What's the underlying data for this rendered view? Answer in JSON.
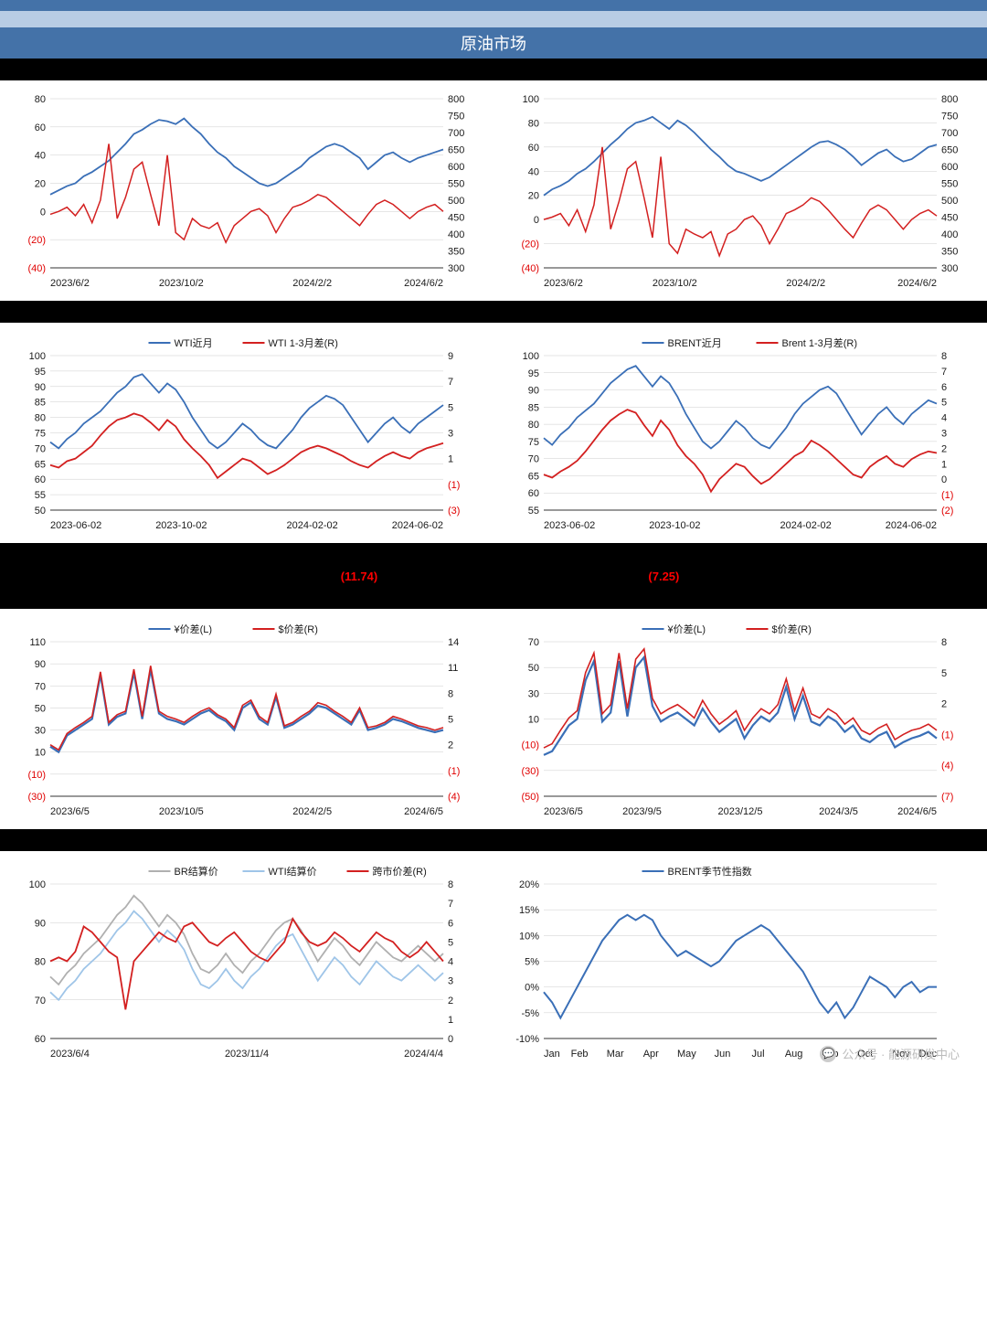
{
  "title": "原油市场",
  "header_color": "#4472a8",
  "subheader_color": "#b8cce4",
  "blackbar_color": "#000000",
  "negtext1": "(11.74)",
  "negtext2": "(7.25)",
  "watermark_text": "公众号 · 能源研发中心",
  "colors": {
    "blue_line": "#3a6fb7",
    "red_line": "#d32020",
    "light_blue": "#9fc5e8",
    "gray_line": "#b0b0b0",
    "grid": "#cccccc",
    "axis": "#333333"
  },
  "c1": {
    "left_ticks": [
      -40,
      -20,
      0,
      20,
      40,
      60,
      80
    ],
    "right_ticks": [
      300,
      350,
      400,
      450,
      500,
      550,
      600,
      650,
      700,
      750,
      800
    ],
    "x_labels": [
      "2023/6/2",
      "2023/10/2",
      "2024/2/2",
      "2024/6/2"
    ],
    "ylim_left": [
      -40,
      80
    ],
    "ylim_right": [
      300,
      800
    ],
    "blue": [
      12,
      15,
      18,
      20,
      25,
      28,
      32,
      36,
      42,
      48,
      55,
      58,
      62,
      65,
      64,
      62,
      66,
      60,
      55,
      48,
      42,
      38,
      32,
      28,
      24,
      20,
      18,
      20,
      24,
      28,
      32,
      38,
      42,
      46,
      48,
      46,
      42,
      38,
      30,
      35,
      40,
      42,
      38,
      35,
      38,
      40,
      42,
      44
    ],
    "red": [
      -2,
      0,
      3,
      -3,
      5,
      -8,
      8,
      48,
      -5,
      10,
      30,
      35,
      12,
      -10,
      40,
      -15,
      -20,
      -5,
      -10,
      -12,
      -8,
      -22,
      -10,
      -5,
      0,
      2,
      -3,
      -15,
      -5,
      3,
      5,
      8,
      12,
      10,
      5,
      0,
      -5,
      -10,
      -2,
      5,
      8,
      5,
      0,
      -5,
      0,
      3,
      5,
      0
    ]
  },
  "c2": {
    "left_ticks": [
      -40,
      -20,
      0,
      20,
      40,
      60,
      80,
      100
    ],
    "right_ticks": [
      300,
      350,
      400,
      450,
      500,
      550,
      600,
      650,
      700,
      750,
      800
    ],
    "x_labels": [
      "2023/6/2",
      "2023/10/2",
      "2024/2/2",
      "2024/6/2"
    ],
    "ylim_left": [
      -40,
      100
    ],
    "ylim_right": [
      300,
      800
    ],
    "blue": [
      20,
      25,
      28,
      32,
      38,
      42,
      48,
      55,
      62,
      68,
      75,
      80,
      82,
      85,
      80,
      75,
      82,
      78,
      72,
      65,
      58,
      52,
      45,
      40,
      38,
      35,
      32,
      35,
      40,
      45,
      50,
      55,
      60,
      64,
      65,
      62,
      58,
      52,
      45,
      50,
      55,
      58,
      52,
      48,
      50,
      55,
      60,
      62
    ],
    "red": [
      0,
      2,
      5,
      -5,
      8,
      -10,
      12,
      60,
      -8,
      15,
      42,
      48,
      18,
      -15,
      52,
      -20,
      -28,
      -8,
      -12,
      -15,
      -10,
      -30,
      -12,
      -8,
      0,
      3,
      -5,
      -20,
      -8,
      5,
      8,
      12,
      18,
      15,
      8,
      0,
      -8,
      -15,
      -3,
      8,
      12,
      8,
      0,
      -8,
      0,
      5,
      8,
      3
    ]
  },
  "c3": {
    "legend": [
      "WTI近月",
      "WTI 1-3月差(R)"
    ],
    "left_ticks": [
      50,
      55,
      60,
      65,
      70,
      75,
      80,
      85,
      90,
      95,
      100
    ],
    "right_ticks": [
      -3,
      -1,
      1,
      3,
      5,
      7,
      9
    ],
    "x_labels": [
      "2023-06-02",
      "2023-10-02",
      "2024-02-02",
      "2024-06-02"
    ],
    "ylim_left": [
      50,
      100
    ],
    "ylim_right": [
      -3,
      9
    ],
    "blue": [
      72,
      70,
      73,
      75,
      78,
      80,
      82,
      85,
      88,
      90,
      93,
      94,
      91,
      88,
      91,
      89,
      85,
      80,
      76,
      72,
      70,
      72,
      75,
      78,
      76,
      73,
      71,
      70,
      73,
      76,
      80,
      83,
      85,
      87,
      86,
      84,
      80,
      76,
      72,
      75,
      78,
      80,
      77,
      75,
      78,
      80,
      82,
      84
    ],
    "red": [
      0.5,
      0.3,
      0.8,
      1.0,
      1.5,
      2.0,
      2.8,
      3.5,
      4.0,
      4.2,
      4.5,
      4.3,
      3.8,
      3.2,
      4.0,
      3.5,
      2.5,
      1.8,
      1.2,
      0.5,
      -0.5,
      0.0,
      0.5,
      1.0,
      0.8,
      0.3,
      -0.2,
      0.1,
      0.5,
      1.0,
      1.5,
      1.8,
      2.0,
      1.8,
      1.5,
      1.2,
      0.8,
      0.5,
      0.3,
      0.8,
      1.2,
      1.5,
      1.2,
      1.0,
      1.5,
      1.8,
      2.0,
      2.2
    ]
  },
  "c4": {
    "legend": [
      "BRENT近月",
      "Brent 1-3月差(R)"
    ],
    "left_ticks": [
      55,
      60,
      65,
      70,
      75,
      80,
      85,
      90,
      95,
      100
    ],
    "right_ticks": [
      -2,
      -1,
      0,
      1,
      2,
      3,
      4,
      5,
      6,
      7,
      8
    ],
    "x_labels": [
      "2023-06-02",
      "2023-10-02",
      "2024-02-02",
      "2024-06-02"
    ],
    "ylim_left": [
      55,
      100
    ],
    "ylim_right": [
      -2,
      8
    ],
    "blue": [
      76,
      74,
      77,
      79,
      82,
      84,
      86,
      89,
      92,
      94,
      96,
      97,
      94,
      91,
      94,
      92,
      88,
      83,
      79,
      75,
      73,
      75,
      78,
      81,
      79,
      76,
      74,
      73,
      76,
      79,
      83,
      86,
      88,
      90,
      91,
      89,
      85,
      81,
      77,
      80,
      83,
      85,
      82,
      80,
      83,
      85,
      87,
      86
    ],
    "red": [
      0.3,
      0.1,
      0.5,
      0.8,
      1.2,
      1.8,
      2.5,
      3.2,
      3.8,
      4.2,
      4.5,
      4.3,
      3.5,
      2.8,
      3.8,
      3.2,
      2.2,
      1.5,
      1.0,
      0.3,
      -0.8,
      0.0,
      0.5,
      1.0,
      0.8,
      0.2,
      -0.3,
      0.0,
      0.5,
      1.0,
      1.5,
      1.8,
      2.5,
      2.2,
      1.8,
      1.3,
      0.8,
      0.3,
      0.1,
      0.8,
      1.2,
      1.5,
      1.0,
      0.8,
      1.3,
      1.6,
      1.8,
      1.7
    ]
  },
  "c5": {
    "legend": [
      "¥价差(L)",
      "$价差(R)"
    ],
    "left_ticks": [
      -30,
      -10,
      10,
      30,
      50,
      70,
      90,
      110
    ],
    "right_ticks": [
      -4,
      -1,
      2,
      5,
      8,
      11,
      14
    ],
    "x_labels": [
      "2023/6/5",
      "2023/10/5",
      "2024/2/5",
      "2024/6/5"
    ],
    "ylim_left": [
      -30,
      110
    ],
    "ylim_right": [
      -4,
      14
    ],
    "blue": [
      15,
      10,
      25,
      30,
      35,
      40,
      80,
      35,
      42,
      45,
      82,
      40,
      85,
      45,
      40,
      38,
      35,
      40,
      45,
      48,
      42,
      38,
      30,
      50,
      55,
      40,
      35,
      60,
      32,
      35,
      40,
      45,
      52,
      50,
      45,
      40,
      35,
      48,
      30,
      32,
      35,
      40,
      38,
      35,
      32,
      30,
      28,
      30
    ],
    "red": [
      2.0,
      1.4,
      3.3,
      4.0,
      4.6,
      5.3,
      10.5,
      4.6,
      5.5,
      5.9,
      10.8,
      5.3,
      11.2,
      5.9,
      5.3,
      5.0,
      4.6,
      5.3,
      5.9,
      6.3,
      5.5,
      5.0,
      4.0,
      6.6,
      7.2,
      5.3,
      4.6,
      7.9,
      4.2,
      4.6,
      5.3,
      5.9,
      6.9,
      6.6,
      5.9,
      5.3,
      4.6,
      6.3,
      4.0,
      4.2,
      4.6,
      5.3,
      5.0,
      4.6,
      4.2,
      4.0,
      3.7,
      4.0
    ]
  },
  "c6": {
    "legend": [
      "¥价差(L)",
      "$价差(R)"
    ],
    "left_ticks": [
      -50,
      -30,
      -10,
      10,
      30,
      50,
      70
    ],
    "right_ticks": [
      -7,
      -4,
      -1,
      2,
      5,
      8
    ],
    "x_labels": [
      "2023/6/5",
      "2023/9/5",
      "2023/12/5",
      "2024/3/5",
      "2024/6/5"
    ],
    "ylim_left": [
      -50,
      70
    ],
    "ylim_right": [
      -7,
      8
    ],
    "blue": [
      -18,
      -15,
      -5,
      5,
      10,
      40,
      55,
      8,
      15,
      55,
      12,
      50,
      58,
      20,
      8,
      12,
      15,
      10,
      5,
      18,
      8,
      0,
      5,
      10,
      -5,
      5,
      12,
      8,
      15,
      35,
      10,
      28,
      8,
      5,
      12,
      8,
      0,
      5,
      -5,
      -8,
      -3,
      0,
      -12,
      -8,
      -5,
      -3,
      0,
      -5
    ],
    "red": [
      -2.3,
      -1.9,
      -0.6,
      0.6,
      1.3,
      5.0,
      6.9,
      1.0,
      1.9,
      6.9,
      1.5,
      6.3,
      7.3,
      2.5,
      1.0,
      1.5,
      1.9,
      1.3,
      0.6,
      2.3,
      1.0,
      0.0,
      0.6,
      1.3,
      -0.6,
      0.6,
      1.5,
      1.0,
      1.9,
      4.4,
      1.3,
      3.5,
      1.0,
      0.6,
      1.5,
      1.0,
      0.0,
      0.6,
      -0.6,
      -1.0,
      -0.4,
      0.0,
      -1.5,
      -1.0,
      -0.6,
      -0.4,
      0.0,
      -0.6
    ]
  },
  "c7": {
    "legend": [
      "BR结算价",
      "WTI结算价",
      "跨市价差(R)"
    ],
    "left_ticks": [
      60,
      70,
      80,
      90,
      100
    ],
    "right_ticks": [
      0,
      1,
      2,
      3,
      4,
      5,
      6,
      7,
      8
    ],
    "x_labels": [
      "2023/6/4",
      "2023/11/4",
      "2024/4/4"
    ],
    "ylim_left": [
      60,
      100
    ],
    "ylim_right": [
      0,
      8
    ],
    "gray": [
      76,
      74,
      77,
      79,
      82,
      84,
      86,
      89,
      92,
      94,
      97,
      95,
      92,
      89,
      92,
      90,
      87,
      82,
      78,
      77,
      79,
      82,
      79,
      77,
      80,
      82,
      85,
      88,
      90,
      91,
      88,
      84,
      80,
      83,
      86,
      84,
      81,
      79,
      82,
      85,
      83,
      81,
      80,
      82,
      84,
      82,
      80,
      82
    ],
    "lightblue": [
      72,
      70,
      73,
      75,
      78,
      80,
      82,
      85,
      88,
      90,
      93,
      91,
      88,
      85,
      88,
      86,
      83,
      78,
      74,
      73,
      75,
      78,
      75,
      73,
      76,
      78,
      81,
      84,
      86,
      87,
      83,
      79,
      75,
      78,
      81,
      79,
      76,
      74,
      77,
      80,
      78,
      76,
      75,
      77,
      79,
      77,
      75,
      77
    ],
    "red": [
      4.0,
      4.2,
      4.0,
      4.5,
      5.8,
      5.5,
      5.0,
      4.5,
      4.2,
      1.5,
      4.0,
      4.5,
      5.0,
      5.5,
      5.2,
      5.0,
      5.8,
      6.0,
      5.5,
      5.0,
      4.8,
      5.2,
      5.5,
      5.0,
      4.5,
      4.2,
      4.0,
      4.5,
      5.0,
      6.2,
      5.5,
      5.0,
      4.8,
      5.0,
      5.5,
      5.2,
      4.8,
      4.5,
      5.0,
      5.5,
      5.2,
      5.0,
      4.5,
      4.2,
      4.5,
      5.0,
      4.5,
      4.0
    ]
  },
  "c8": {
    "legend": [
      "BRENT季节性指数"
    ],
    "left_ticks": [
      "-10%",
      "-5%",
      "0%",
      "5%",
      "10%",
      "15%",
      "20%"
    ],
    "x_labels": [
      "Jan",
      "Feb",
      "Mar",
      "Apr",
      "May",
      "Jun",
      "Jul",
      "Aug",
      "Sep",
      "Oct",
      "Nov",
      "Dec"
    ],
    "ylim_left": [
      -10,
      20
    ],
    "blue": [
      -1,
      -3,
      -6,
      -3,
      0,
      3,
      6,
      9,
      11,
      13,
      14,
      13,
      14,
      13,
      10,
      8,
      6,
      7,
      6,
      5,
      4,
      5,
      7,
      9,
      10,
      11,
      12,
      11,
      9,
      7,
      5,
      3,
      0,
      -3,
      -5,
      -3,
      -6,
      -4,
      -1,
      2,
      1,
      0,
      -2,
      0,
      1,
      -1,
      0,
      0
    ]
  }
}
